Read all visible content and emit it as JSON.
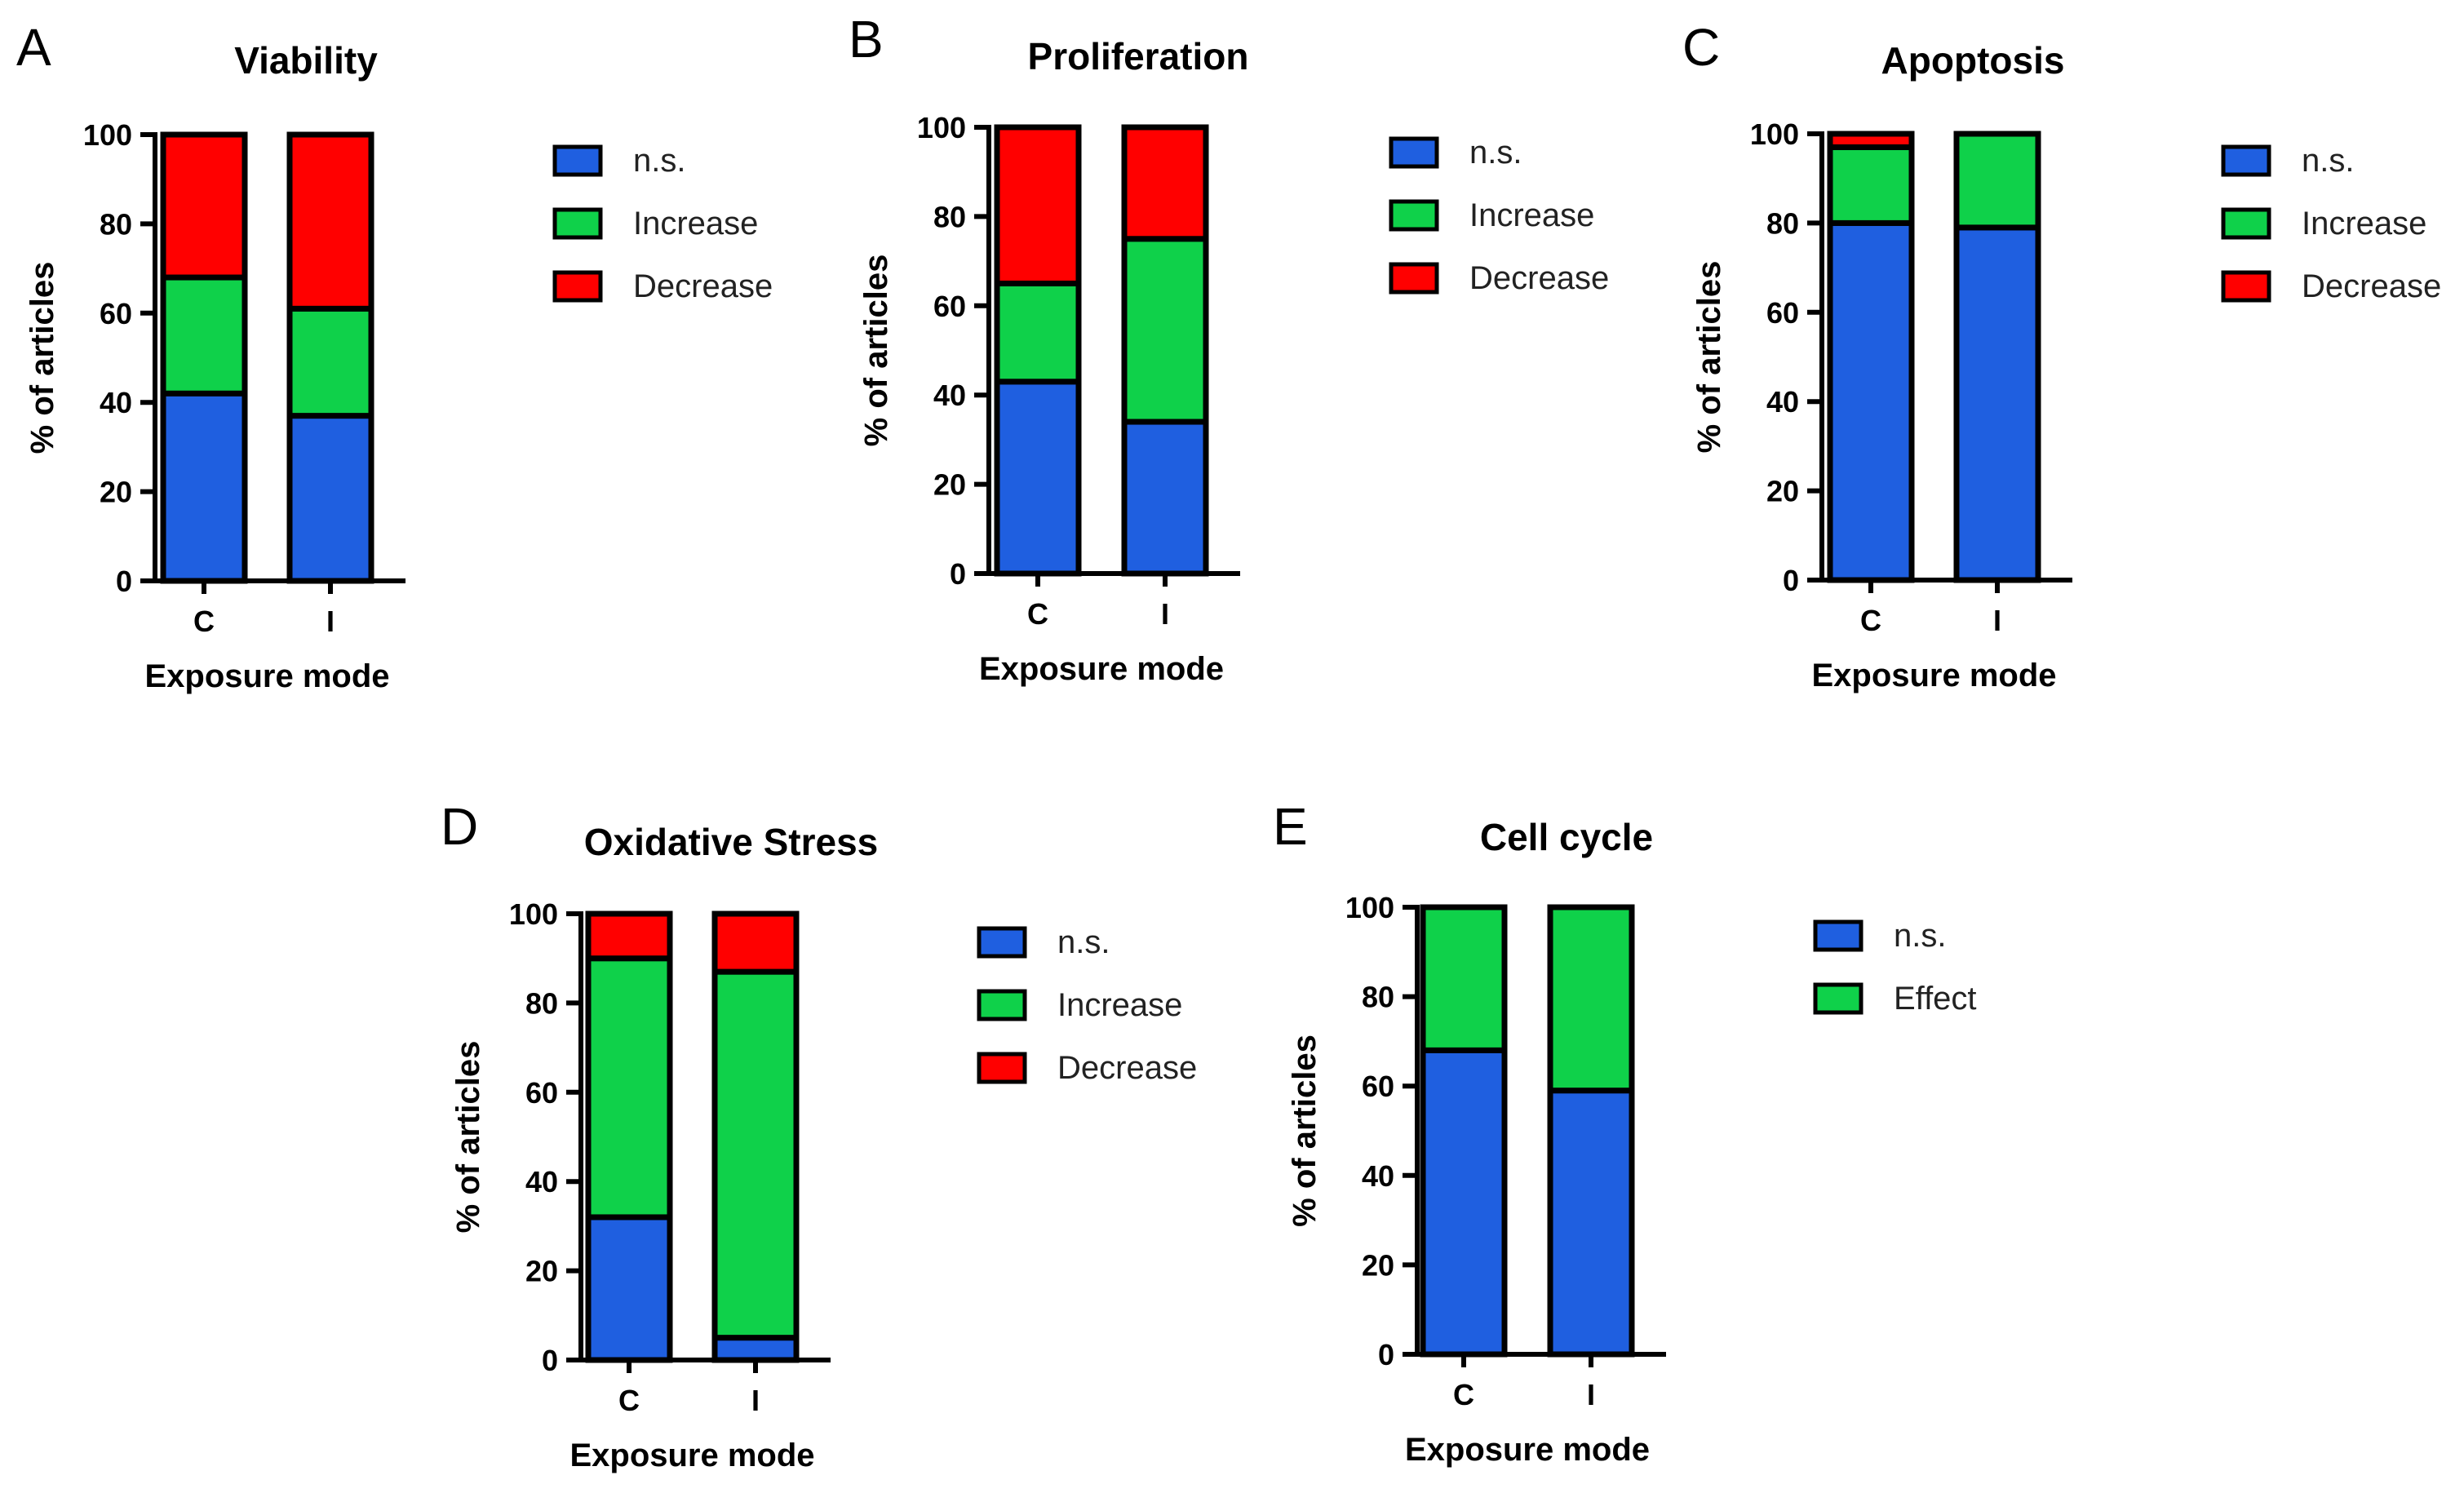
{
  "chart_data": [
    {
      "type": "bar",
      "stacked": true,
      "panel": "A",
      "title": "Viability",
      "xlabel": "Exposure mode",
      "ylabel": "% of articles",
      "ylim": [
        0,
        100
      ],
      "yticks": [
        0,
        20,
        40,
        60,
        80,
        100
      ],
      "categories": [
        "C",
        "I"
      ],
      "series": [
        {
          "name": "n.s.",
          "color": "#1f5fe0",
          "values": [
            42,
            37
          ]
        },
        {
          "name": "Increase",
          "color": "#0fd14a",
          "values": [
            26,
            24
          ]
        },
        {
          "name": "Decrease",
          "color": "#ff0000",
          "values": [
            32,
            39
          ]
        }
      ],
      "legend": "right"
    },
    {
      "type": "bar",
      "stacked": true,
      "panel": "B",
      "title": "Proliferation",
      "xlabel": "Exposure mode",
      "ylabel": "% of articles",
      "ylim": [
        0,
        100
      ],
      "yticks": [
        0,
        20,
        40,
        60,
        80,
        100
      ],
      "categories": [
        "C",
        "I"
      ],
      "series": [
        {
          "name": "n.s.",
          "color": "#1f5fe0",
          "values": [
            43,
            34
          ]
        },
        {
          "name": "Increase",
          "color": "#0fd14a",
          "values": [
            22,
            41
          ]
        },
        {
          "name": "Decrease",
          "color": "#ff0000",
          "values": [
            35,
            25
          ]
        }
      ],
      "legend": "right"
    },
    {
      "type": "bar",
      "stacked": true,
      "panel": "C",
      "title": "Apoptosis",
      "xlabel": "Exposure mode",
      "ylabel": "% of articles",
      "ylim": [
        0,
        100
      ],
      "yticks": [
        0,
        20,
        40,
        60,
        80,
        100
      ],
      "categories": [
        "C",
        "I"
      ],
      "series": [
        {
          "name": "n.s.",
          "color": "#1f5fe0",
          "values": [
            80,
            79
          ]
        },
        {
          "name": "Increase",
          "color": "#0fd14a",
          "values": [
            17,
            21
          ]
        },
        {
          "name": "Decrease",
          "color": "#ff0000",
          "values": [
            3,
            0
          ]
        }
      ],
      "legend": "right"
    },
    {
      "type": "bar",
      "stacked": true,
      "panel": "D",
      "title": "Oxidative Stress",
      "xlabel": "Exposure mode",
      "ylabel": "% of articles",
      "ylim": [
        0,
        100
      ],
      "yticks": [
        0,
        20,
        40,
        60,
        80,
        100
      ],
      "categories": [
        "C",
        "I"
      ],
      "series": [
        {
          "name": "n.s.",
          "color": "#1f5fe0",
          "values": [
            32,
            5
          ]
        },
        {
          "name": "Increase",
          "color": "#0fd14a",
          "values": [
            58,
            82
          ]
        },
        {
          "name": "Decrease",
          "color": "#ff0000",
          "values": [
            10,
            13
          ]
        }
      ],
      "legend": "right"
    },
    {
      "type": "bar",
      "stacked": true,
      "panel": "E",
      "title": "Cell cycle",
      "xlabel": "Exposure mode",
      "ylabel": "% of articles",
      "ylim": [
        0,
        100
      ],
      "yticks": [
        0,
        20,
        40,
        60,
        80,
        100
      ],
      "categories": [
        "C",
        "I"
      ],
      "series": [
        {
          "name": "n.s.",
          "color": "#1f5fe0",
          "values": [
            68,
            59
          ]
        },
        {
          "name": "Effect",
          "color": "#0fd14a",
          "values": [
            32,
            41
          ]
        }
      ],
      "legend": "right"
    }
  ]
}
